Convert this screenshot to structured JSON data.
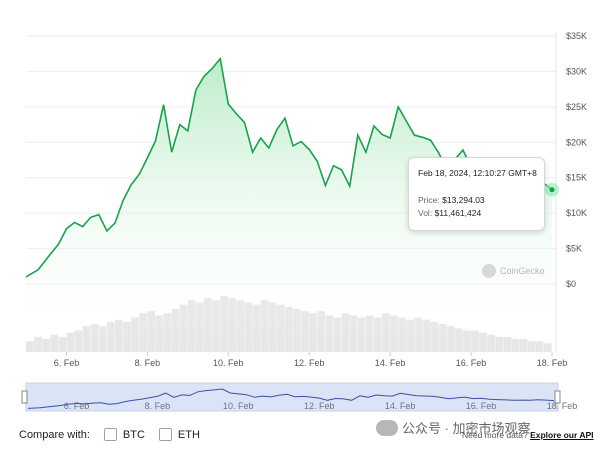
{
  "chart_data": {
    "type": "line",
    "y_axis": {
      "ticks": [
        "$35K",
        "$30K",
        "$25K",
        "$20K",
        "$15K",
        "$10K",
        "$5K",
        "$0"
      ],
      "values": [
        35000,
        30000,
        25000,
        20000,
        15000,
        10000,
        5000,
        0
      ],
      "position": "right"
    },
    "x_axis": {
      "ticks": [
        "6. Feb",
        "8. Feb",
        "10. Feb",
        "12. Feb",
        "14. Feb",
        "16. Feb",
        "18. Feb"
      ]
    },
    "series": [
      {
        "values": [
          [
            5.0,
            1000
          ],
          [
            5.3,
            2000
          ],
          [
            5.6,
            4200
          ],
          [
            5.8,
            5600
          ],
          [
            6.0,
            7800
          ],
          [
            6.2,
            8700
          ],
          [
            6.4,
            8100
          ],
          [
            6.6,
            9400
          ],
          [
            6.8,
            9800
          ],
          [
            7.0,
            7500
          ],
          [
            7.2,
            8600
          ],
          [
            7.4,
            11800
          ],
          [
            7.6,
            14000
          ],
          [
            7.8,
            15500
          ],
          [
            8.0,
            17800
          ],
          [
            8.2,
            20200
          ],
          [
            8.4,
            25300
          ],
          [
            8.6,
            18600
          ],
          [
            8.8,
            22500
          ],
          [
            9.0,
            21600
          ],
          [
            9.2,
            27400
          ],
          [
            9.4,
            29300
          ],
          [
            9.6,
            30400
          ],
          [
            9.8,
            31800
          ],
          [
            10.0,
            25400
          ],
          [
            10.2,
            24000
          ],
          [
            10.4,
            22800
          ],
          [
            10.6,
            18600
          ],
          [
            10.8,
            20600
          ],
          [
            11.0,
            19200
          ],
          [
            11.2,
            21800
          ],
          [
            11.4,
            23400
          ],
          [
            11.6,
            19500
          ],
          [
            11.8,
            20100
          ],
          [
            12.0,
            19000
          ],
          [
            12.2,
            17300
          ],
          [
            12.4,
            13900
          ],
          [
            12.6,
            16700
          ],
          [
            12.8,
            16100
          ],
          [
            13.0,
            13800
          ],
          [
            13.2,
            21000
          ],
          [
            13.4,
            18600
          ],
          [
            13.6,
            22300
          ],
          [
            13.8,
            21100
          ],
          [
            14.0,
            20600
          ],
          [
            14.2,
            25000
          ],
          [
            14.4,
            23000
          ],
          [
            14.6,
            21000
          ],
          [
            14.8,
            20700
          ],
          [
            15.0,
            20300
          ],
          [
            15.2,
            18500
          ],
          [
            15.4,
            16200
          ],
          [
            15.6,
            17600
          ],
          [
            15.8,
            18900
          ],
          [
            16.0,
            16500
          ],
          [
            16.2,
            17000
          ],
          [
            16.4,
            15600
          ],
          [
            16.6,
            14900
          ],
          [
            16.8,
            14400
          ],
          [
            17.0,
            14000
          ],
          [
            17.2,
            14100
          ],
          [
            17.4,
            13800
          ],
          [
            17.6,
            14600
          ],
          [
            17.8,
            14200
          ],
          [
            18.0,
            13294
          ]
        ]
      }
    ],
    "volume": [
      5,
      7,
      6,
      8,
      7,
      9,
      10,
      12,
      13,
      12,
      14,
      15,
      14,
      16,
      18,
      19,
      17,
      18,
      20,
      22,
      24,
      23,
      25,
      24,
      26,
      25,
      24,
      23,
      22,
      24,
      23,
      22,
      21,
      20,
      19,
      18,
      19,
      17,
      16,
      18,
      17,
      16,
      17,
      16,
      18,
      17,
      16,
      15,
      16,
      15,
      14,
      13,
      12,
      11,
      10,
      10,
      9,
      8,
      7,
      7,
      6,
      6,
      5,
      5,
      4
    ]
  },
  "tooltip": {
    "date": "Feb 18, 2024, 12:10:27 GMT+8",
    "price_label": "Price:",
    "price": "$13,294.03",
    "vol_label": "Vol:",
    "vol": "$11,461,424"
  },
  "watermark": "CoinGecko",
  "navigator": {
    "ticks": [
      "6. Feb",
      "8. Feb",
      "10. Feb",
      "12. Feb",
      "14. Feb",
      "16. Feb",
      "18. Feb"
    ]
  },
  "footer": {
    "compare_label": "Compare with:",
    "options": [
      "BTC",
      "ETH"
    ]
  },
  "api": {
    "text": "Need more data?",
    "link": "Explore our API"
  },
  "overlay": {
    "text": "公众号 · 加密市场观察"
  },
  "colors": {
    "line": "#16a34a",
    "fill_top": "#b8ebc6",
    "fill_bottom": "#ffffff",
    "volume": "#e5e7eb",
    "nav_fill": "#dbe4f7",
    "nav_line": "#3b4fa6"
  }
}
